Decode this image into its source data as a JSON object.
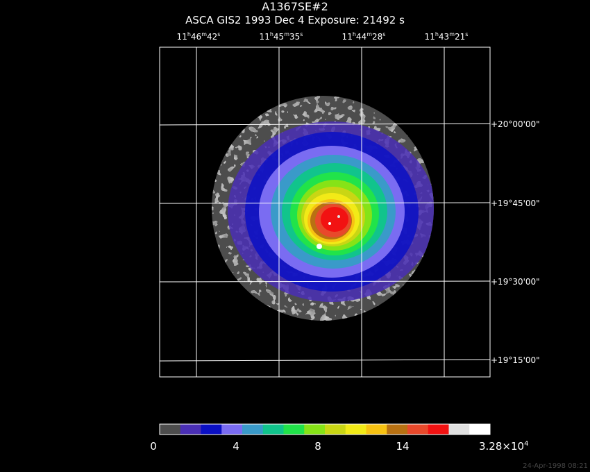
{
  "header": {
    "target": "A1367SE#2",
    "info": "ASCA GIS2   1993 Dec  4    Exposure: 21492 s"
  },
  "ra_labels": [
    {
      "h": "11",
      "m": "46",
      "s": "42"
    },
    {
      "h": "11",
      "m": "45",
      "s": "35"
    },
    {
      "h": "11",
      "m": "44",
      "s": "28"
    },
    {
      "h": "11",
      "m": "43",
      "s": "21"
    }
  ],
  "dec_labels": [
    "+20°00'00\"",
    "+19°45'00\"",
    "+19°30'00\"",
    "+19°15'00\""
  ],
  "colorbar": {
    "labels": [
      "0",
      "4",
      "8",
      "14"
    ],
    "max_mantissa": "3.28×10",
    "max_exponent": "4",
    "colors": [
      "#4d4d4d",
      "#4a2fb5",
      "#0b10c4",
      "#7a6cf2",
      "#3a9ac9",
      "#11c48c",
      "#21e34a",
      "#86e317",
      "#c9d614",
      "#f2ea17",
      "#f7c212",
      "#b87112",
      "#e8492b",
      "#f21212",
      "#e0e0e0",
      "#ffffff"
    ]
  },
  "footer": {
    "timestamp": "24-Apr-1998 08:21"
  }
}
